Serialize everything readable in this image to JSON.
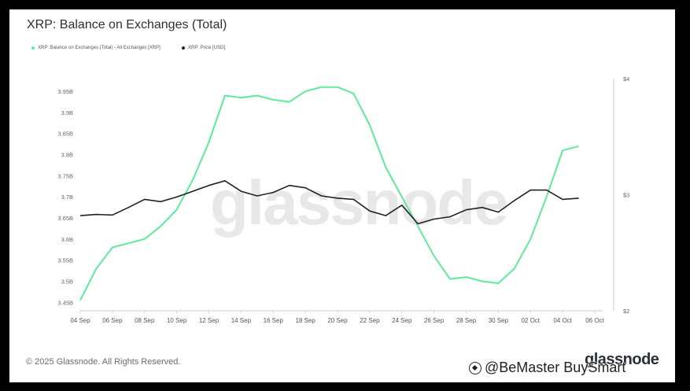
{
  "title": "XRP: Balance on Exchanges (Total)",
  "legend": [
    {
      "label": "XRP: Balance on Exchanges (Total) - All Exchanges [XRP]",
      "color": "#5fea9a"
    },
    {
      "label": "XRP: Price [USD]",
      "color": "#222222"
    }
  ],
  "footer": {
    "copyright": "© 2025 Glassnode. All Rights Reserved.",
    "logo": "glassnode",
    "watermark": "glassnode"
  },
  "overlay_watermark": {
    "icon": "binance-square-icon",
    "text": "@BeMaster BuySmart"
  },
  "chart_data": {
    "type": "line",
    "x": [
      "04 Sep",
      "05 Sep",
      "06 Sep",
      "07 Sep",
      "08 Sep",
      "09 Sep",
      "10 Sep",
      "11 Sep",
      "12 Sep",
      "13 Sep",
      "14 Sep",
      "15 Sep",
      "16 Sep",
      "17 Sep",
      "18 Sep",
      "19 Sep",
      "20 Sep",
      "21 Sep",
      "22 Sep",
      "23 Sep",
      "24 Sep",
      "25 Sep",
      "26 Sep",
      "27 Sep",
      "28 Sep",
      "29 Sep",
      "30 Sep",
      "01 Oct",
      "02 Oct",
      "03 Oct",
      "04 Oct",
      "05 Oct"
    ],
    "x_tick_labels": [
      "04 Sep",
      "06 Sep",
      "08 Sep",
      "10 Sep",
      "12 Sep",
      "14 Sep",
      "16 Sep",
      "18 Sep",
      "20 Sep",
      "22 Sep",
      "24 Sep",
      "26 Sep",
      "28 Sep",
      "30 Sep",
      "02 Oct",
      "04 Oct",
      "06 Oct"
    ],
    "series": [
      {
        "name": "XRP: Balance on Exchanges (Total) - All Exchanges [XRP]",
        "axis": "left",
        "color": "#5fea9a",
        "values": [
          3.455,
          3.53,
          3.58,
          3.59,
          3.6,
          3.63,
          3.67,
          3.74,
          3.83,
          3.94,
          3.935,
          3.94,
          3.93,
          3.925,
          3.95,
          3.96,
          3.96,
          3.945,
          3.87,
          3.77,
          3.7,
          3.63,
          3.56,
          3.505,
          3.51,
          3.5,
          3.495,
          3.53,
          3.6,
          3.7,
          3.81,
          3.82
        ]
      },
      {
        "name": "XRP: Price [USD]",
        "axis": "right",
        "color": "#222222",
        "values": [
          2.82,
          2.83,
          2.825,
          2.89,
          2.96,
          2.94,
          2.98,
          3.03,
          3.08,
          3.12,
          3.03,
          2.99,
          3.02,
          3.08,
          3.06,
          2.99,
          2.97,
          2.96,
          2.86,
          2.82,
          2.91,
          2.75,
          2.79,
          2.81,
          2.87,
          2.89,
          2.85,
          2.95,
          3.04,
          3.04,
          2.96,
          2.97
        ]
      }
    ],
    "y_left": {
      "ticks": [
        "3.45B",
        "3.5B",
        "3.55B",
        "3.6B",
        "3.65B",
        "3.7B",
        "3.75B",
        "3.8B",
        "3.85B",
        "3.9B",
        "3.95B"
      ],
      "min": 3.43,
      "max": 3.98
    },
    "y_right": {
      "ticks": [
        "$2",
        "$3",
        "$4"
      ],
      "min": 2,
      "max": 4
    },
    "grid": false,
    "legend_position": "top-left"
  }
}
